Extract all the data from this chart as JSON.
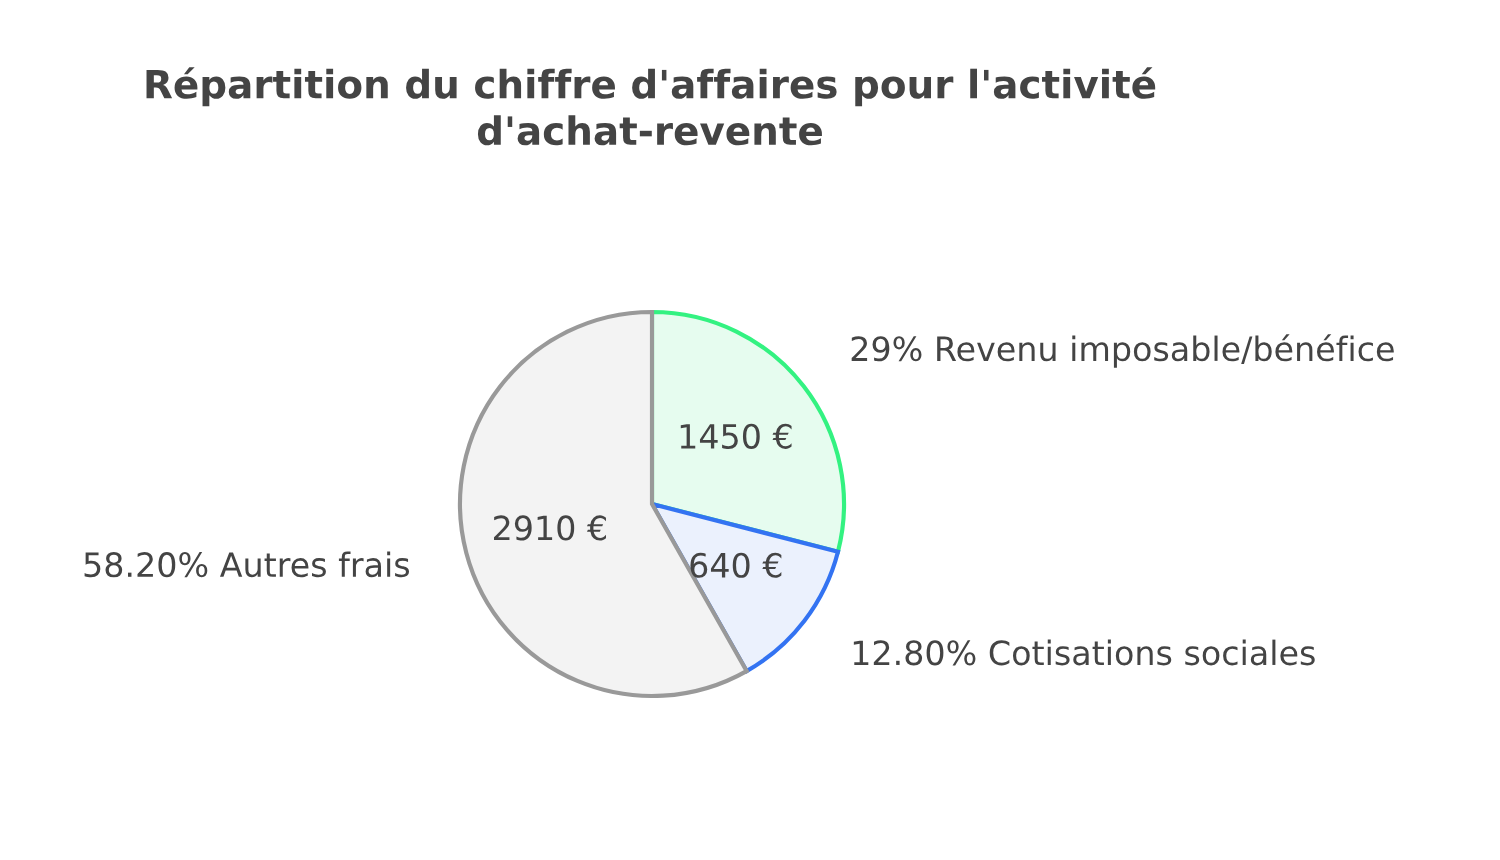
{
  "chart_data": {
    "type": "pie",
    "title": "Répartition du chiffre d'affaires pour l'activité\nd'achat-revente",
    "categories": [
      "29% Revenu imposable/bénéfice",
      "12.80% Cotisations sociales",
      "58.20% Autres frais"
    ],
    "values": [
      1450,
      640,
      2910
    ],
    "value_labels": [
      "1450 €",
      "640 €",
      "2910 €"
    ],
    "colors": [
      "#e6fcef",
      "#ebf1fd",
      "#f3f3f3"
    ]
  }
}
